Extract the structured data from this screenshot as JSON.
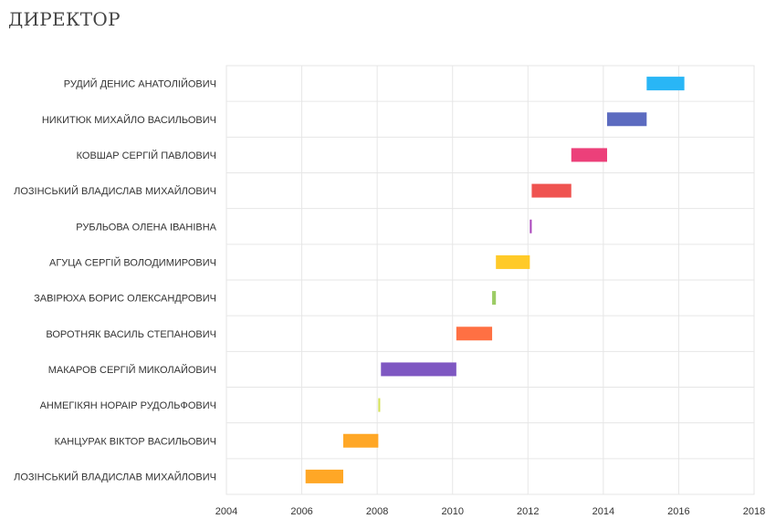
{
  "page_title": "ДИРЕКТОР",
  "chart_data": {
    "type": "gantt",
    "title": "",
    "xlabel": "",
    "ylabel": "",
    "xlim": [
      2004,
      2018
    ],
    "x_ticks": [
      "2004",
      "2006",
      "2008",
      "2010",
      "2012",
      "2014",
      "2016",
      "2018"
    ],
    "grid": true,
    "legend": "none",
    "rows": [
      {
        "name": "РУДИЙ ДЕНИС АНАТОЛІЙОВИЧ",
        "start": 2015.15,
        "end": 2016.15,
        "color": "#29b6f6"
      },
      {
        "name": "НИКИТЮК МИХАЙЛО ВАСИЛЬОВИЧ",
        "start": 2014.1,
        "end": 2015.15,
        "color": "#5c6bc0"
      },
      {
        "name": "КОВШАР СЕРГІЙ ПАВЛОВИЧ",
        "start": 2013.15,
        "end": 2014.1,
        "color": "#ec407a"
      },
      {
        "name": "ЛОЗІНСЬКИЙ ВЛАДИСЛАВ МИХАЙЛОВИЧ",
        "start": 2012.1,
        "end": 2013.15,
        "color": "#ef5350"
      },
      {
        "name": "РУБЛЬОВА ОЛЕНА ІВАНІВНА",
        "start": 2012.05,
        "end": 2012.1,
        "color": "#ab47bc"
      },
      {
        "name": "АГУЦА СЕРГІЙ ВОЛОДИМИРОВИЧ",
        "start": 2011.15,
        "end": 2012.05,
        "color": "#ffca28"
      },
      {
        "name": "ЗАВІРЮХА БОРИС ОЛЕКСАНДРОВИЧ",
        "start": 2011.05,
        "end": 2011.15,
        "color": "#9ccc65"
      },
      {
        "name": "ВОРОТНЯК ВАСИЛЬ СТЕПАНОВИЧ",
        "start": 2010.1,
        "end": 2011.05,
        "color": "#ff7043"
      },
      {
        "name": "МАКАРОВ СЕРГІЙ МИКОЛАЙОВИЧ",
        "start": 2008.1,
        "end": 2010.1,
        "color": "#7e57c2"
      },
      {
        "name": "АНМЕГІКЯН НОРАІР РУДОЛЬФОВИЧ",
        "start": 2008.03,
        "end": 2008.08,
        "color": "#d4e157"
      },
      {
        "name": "КАНЦУРАК ВІКТОР ВАСИЛЬОВИЧ",
        "start": 2007.1,
        "end": 2008.03,
        "color": "#ffa726"
      },
      {
        "name": "ЛОЗІНСЬКИЙ ВЛАДИСЛАВ МИХАЙЛОВИЧ",
        "start": 2006.1,
        "end": 2007.1,
        "color": "#ffa726"
      }
    ]
  }
}
